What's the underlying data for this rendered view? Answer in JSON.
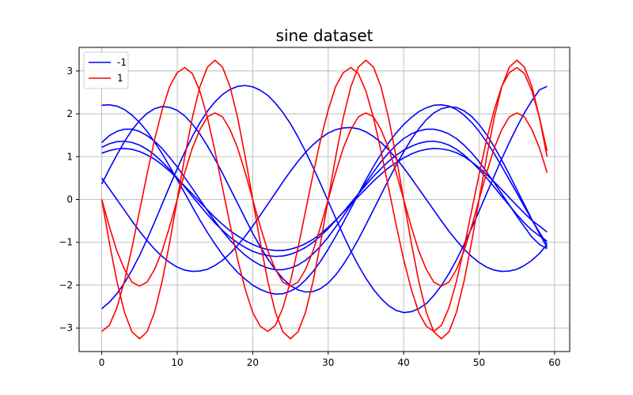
{
  "chart_data": {
    "type": "line",
    "title": "sine dataset",
    "xlabel": "",
    "ylabel": "",
    "xlim": [
      -3,
      62
    ],
    "ylim": [
      -3.55,
      3.55
    ],
    "xticks": [
      0,
      10,
      20,
      30,
      40,
      50,
      60
    ],
    "yticks": [
      -3,
      -2,
      -1,
      0,
      1,
      2,
      3
    ],
    "xtick_labels": [
      "0",
      "10",
      "20",
      "30",
      "40",
      "50",
      "60"
    ],
    "ytick_labels": [
      "−3",
      "−2",
      "−1",
      "0",
      "1",
      "2",
      "3"
    ],
    "grid": true,
    "legend_placement": "top-left",
    "legend": [
      {
        "label": "-1",
        "color": "#0000ff"
      },
      {
        "label": "1",
        "color": "#ff0000"
      }
    ],
    "x": [
      0,
      1,
      2,
      3,
      4,
      5,
      6,
      7,
      8,
      9,
      10,
      11,
      12,
      13,
      14,
      15,
      16,
      17,
      18,
      19,
      20,
      21,
      22,
      23,
      24,
      25,
      26,
      27,
      28,
      29,
      30,
      31,
      32,
      33,
      34,
      35,
      36,
      37,
      38,
      39,
      40,
      41,
      42,
      43,
      44,
      45,
      46,
      47,
      48,
      49,
      50,
      51,
      52,
      53,
      54,
      55,
      56,
      57,
      58,
      59
    ],
    "series": [
      {
        "class": "-1",
        "color": "#0000ff",
        "y": [
          2.2,
          2.21,
          2.18,
          2.1,
          1.97,
          1.8,
          1.59,
          1.34,
          1.07,
          0.77,
          0.46,
          0.15,
          -0.17,
          -0.48,
          -0.77,
          -1.04,
          -1.29,
          -1.51,
          -1.7,
          -1.86,
          -2.0,
          -2.1,
          -2.17,
          -2.21,
          -2.2,
          -2.14,
          -2.04,
          -1.88,
          -1.68,
          -1.44,
          -1.16,
          -0.86,
          -0.54,
          -0.21,
          0.13,
          0.46,
          0.77,
          1.06,
          1.32,
          1.55,
          1.75,
          1.91,
          2.05,
          2.14,
          2.2,
          2.21,
          2.18,
          2.1,
          1.97,
          1.8,
          1.59,
          1.34,
          1.07,
          0.77,
          0.46,
          0.15,
          -0.17,
          -0.48,
          -0.77,
          -1.04
        ]
      },
      {
        "class": "-1",
        "color": "#0000ff",
        "y": [
          1.33,
          1.49,
          1.59,
          1.64,
          1.64,
          1.59,
          1.49,
          1.36,
          1.19,
          0.98,
          0.76,
          0.51,
          0.26,
          0.0,
          -0.26,
          -0.51,
          -0.74,
          -0.95,
          -1.14,
          -1.3,
          -1.43,
          -1.53,
          -1.6,
          -1.64,
          -1.64,
          -1.6,
          -1.53,
          -1.42,
          -1.27,
          -1.09,
          -0.88,
          -0.64,
          -0.39,
          -0.13,
          0.13,
          0.39,
          0.64,
          0.88,
          1.09,
          1.27,
          1.42,
          1.53,
          1.6,
          1.64,
          1.64,
          1.6,
          1.53,
          1.42,
          1.27,
          1.09,
          0.88,
          0.64,
          0.39,
          0.13,
          -0.13,
          -0.39,
          -0.64,
          -0.88,
          -1.05,
          -1.15
        ]
      },
      {
        "class": "-1",
        "color": "#0000ff",
        "y": [
          1.22,
          1.3,
          1.35,
          1.36,
          1.33,
          1.27,
          1.17,
          1.04,
          0.88,
          0.7,
          0.5,
          0.29,
          0.07,
          -0.14,
          -0.35,
          -0.55,
          -0.72,
          -0.88,
          -1.01,
          -1.12,
          -1.21,
          -1.27,
          -1.31,
          -1.33,
          -1.32,
          -1.28,
          -1.21,
          -1.12,
          -1.0,
          -0.85,
          -0.68,
          -0.49,
          -0.29,
          -0.08,
          0.13,
          0.34,
          0.54,
          0.72,
          0.89,
          1.03,
          1.15,
          1.24,
          1.31,
          1.35,
          1.36,
          1.33,
          1.27,
          1.17,
          1.04,
          0.88,
          0.7,
          0.5,
          0.29,
          0.07,
          -0.14,
          -0.35,
          -0.55,
          -0.72,
          -0.85,
          -0.97
        ]
      },
      {
        "class": "-1",
        "color": "#0000ff",
        "y": [
          1.08,
          1.14,
          1.18,
          1.19,
          1.17,
          1.12,
          1.04,
          0.94,
          0.81,
          0.66,
          0.49,
          0.31,
          0.13,
          -0.06,
          -0.24,
          -0.42,
          -0.58,
          -0.73,
          -0.85,
          -0.96,
          -1.05,
          -1.12,
          -1.17,
          -1.19,
          -1.19,
          -1.16,
          -1.11,
          -1.03,
          -0.93,
          -0.8,
          -0.65,
          -0.48,
          -0.3,
          -0.11,
          0.07,
          0.25,
          0.43,
          0.59,
          0.74,
          0.86,
          0.97,
          1.06,
          1.13,
          1.17,
          1.19,
          1.18,
          1.15,
          1.09,
          1.0,
          0.88,
          0.74,
          0.58,
          0.41,
          0.23,
          0.04,
          -0.14,
          -0.32,
          -0.49,
          -0.62,
          -0.76
        ]
      },
      {
        "class": "-1",
        "color": "#0000ff",
        "y": [
          0.5,
          0.25,
          0.0,
          -0.25,
          -0.5,
          -0.74,
          -0.96,
          -1.16,
          -1.33,
          -1.47,
          -1.58,
          -1.65,
          -1.68,
          -1.67,
          -1.63,
          -1.54,
          -1.42,
          -1.26,
          -1.07,
          -0.86,
          -0.62,
          -0.37,
          -0.11,
          0.15,
          0.41,
          0.66,
          0.89,
          1.1,
          1.28,
          1.43,
          1.55,
          1.63,
          1.67,
          1.68,
          1.65,
          1.58,
          1.47,
          1.33,
          1.16,
          0.96,
          0.74,
          0.5,
          0.25,
          0.0,
          -0.25,
          -0.5,
          -0.74,
          -0.96,
          -1.16,
          -1.33,
          -1.47,
          -1.58,
          -1.65,
          -1.68,
          -1.67,
          -1.63,
          -1.54,
          -1.42,
          -1.26,
          -1.05
        ]
      },
      {
        "class": "-1",
        "color": "#0000ff",
        "y": [
          0.36,
          0.71,
          1.04,
          1.35,
          1.62,
          1.84,
          2.01,
          2.12,
          2.17,
          2.15,
          2.08,
          1.95,
          1.76,
          1.53,
          1.25,
          0.94,
          0.61,
          0.26,
          -0.09,
          -0.44,
          -0.79,
          -1.1,
          -1.39,
          -1.64,
          -1.85,
          -2.01,
          -2.11,
          -2.16,
          -2.15,
          -2.08,
          -1.95,
          -1.76,
          -1.52,
          -1.24,
          -0.93,
          -0.59,
          -0.24,
          0.11,
          0.46,
          0.8,
          1.11,
          1.4,
          1.65,
          1.86,
          2.02,
          2.12,
          2.16,
          2.15,
          2.07,
          1.94,
          1.75,
          1.51,
          1.23,
          0.92,
          0.58,
          0.23,
          -0.12,
          -0.47,
          -0.8,
          -1.12
        ]
      },
      {
        "class": "-1",
        "color": "#0000ff",
        "y": [
          -2.55,
          -2.4,
          -2.2,
          -1.95,
          -1.65,
          -1.31,
          -0.93,
          -0.53,
          -0.11,
          0.31,
          0.72,
          1.11,
          1.47,
          1.79,
          2.06,
          2.28,
          2.45,
          2.57,
          2.64,
          2.66,
          2.63,
          2.55,
          2.43,
          2.25,
          2.03,
          1.77,
          1.46,
          1.12,
          0.75,
          0.36,
          -0.04,
          -0.44,
          -0.83,
          -1.2,
          -1.54,
          -1.84,
          -2.1,
          -2.31,
          -2.48,
          -2.59,
          -2.64,
          -2.62,
          -2.55,
          -2.43,
          -2.24,
          -2.01,
          -1.73,
          -1.41,
          -1.05,
          -0.67,
          -0.27,
          0.14,
          0.55,
          0.95,
          1.33,
          1.69,
          2.02,
          2.31,
          2.56,
          2.64
        ]
      },
      {
        "class": "1",
        "color": "#ff0000",
        "y": [
          0.0,
          -0.63,
          -1.2,
          -1.63,
          -1.93,
          -2.02,
          -1.93,
          -1.63,
          -1.2,
          -0.63,
          0.0,
          0.63,
          1.2,
          1.63,
          1.93,
          2.02,
          1.93,
          1.63,
          1.2,
          0.63,
          0.0,
          -0.63,
          -1.2,
          -1.63,
          -1.93,
          -2.02,
          -1.93,
          -1.63,
          -1.2,
          -0.63,
          0.0,
          0.63,
          1.2,
          1.63,
          1.93,
          2.02,
          1.93,
          1.63,
          1.2,
          0.63,
          0.0,
          -0.63,
          -1.2,
          -1.63,
          -1.93,
          -2.02,
          -1.93,
          -1.63,
          -1.2,
          -0.63,
          0.0,
          0.63,
          1.2,
          1.63,
          1.93,
          2.02,
          1.93,
          1.63,
          1.2,
          0.63
        ]
      },
      {
        "class": "1",
        "color": "#ff0000",
        "y": [
          0.0,
          -1.0,
          -1.91,
          -2.63,
          -3.09,
          -3.25,
          -3.09,
          -2.63,
          -1.91,
          -1.0,
          0.0,
          1.0,
          1.91,
          2.63,
          3.09,
          3.25,
          3.09,
          2.63,
          1.91,
          1.0,
          0.0,
          -1.0,
          -1.91,
          -2.63,
          -3.09,
          -3.25,
          -3.09,
          -2.63,
          -1.91,
          -1.0,
          0.0,
          1.0,
          1.91,
          2.63,
          3.09,
          3.25,
          3.09,
          2.63,
          1.91,
          1.0,
          0.0,
          -1.0,
          -1.91,
          -2.63,
          -3.09,
          -3.25,
          -3.09,
          -2.63,
          -1.91,
          -1.0,
          0.0,
          1.0,
          1.91,
          2.63,
          3.09,
          3.25,
          3.09,
          2.63,
          1.91,
          1.0
        ]
      },
      {
        "class": "1",
        "color": "#ff0000",
        "y": [
          -3.08,
          -2.94,
          -2.53,
          -1.91,
          -1.13,
          -0.27,
          0.59,
          1.4,
          2.09,
          2.64,
          2.96,
          3.08,
          2.94,
          2.53,
          1.91,
          1.13,
          0.27,
          -0.59,
          -1.4,
          -2.09,
          -2.64,
          -2.96,
          -3.08,
          -2.94,
          -2.53,
          -1.91,
          -1.13,
          -0.27,
          0.59,
          1.4,
          2.09,
          2.64,
          2.96,
          3.08,
          2.94,
          2.53,
          1.91,
          1.13,
          0.27,
          -0.59,
          -1.4,
          -2.09,
          -2.64,
          -2.96,
          -3.08,
          -2.94,
          -2.53,
          -1.91,
          -1.13,
          -0.27,
          0.59,
          1.4,
          2.09,
          2.64,
          2.96,
          3.08,
          2.94,
          2.53,
          1.91,
          1.13
        ]
      }
    ]
  }
}
